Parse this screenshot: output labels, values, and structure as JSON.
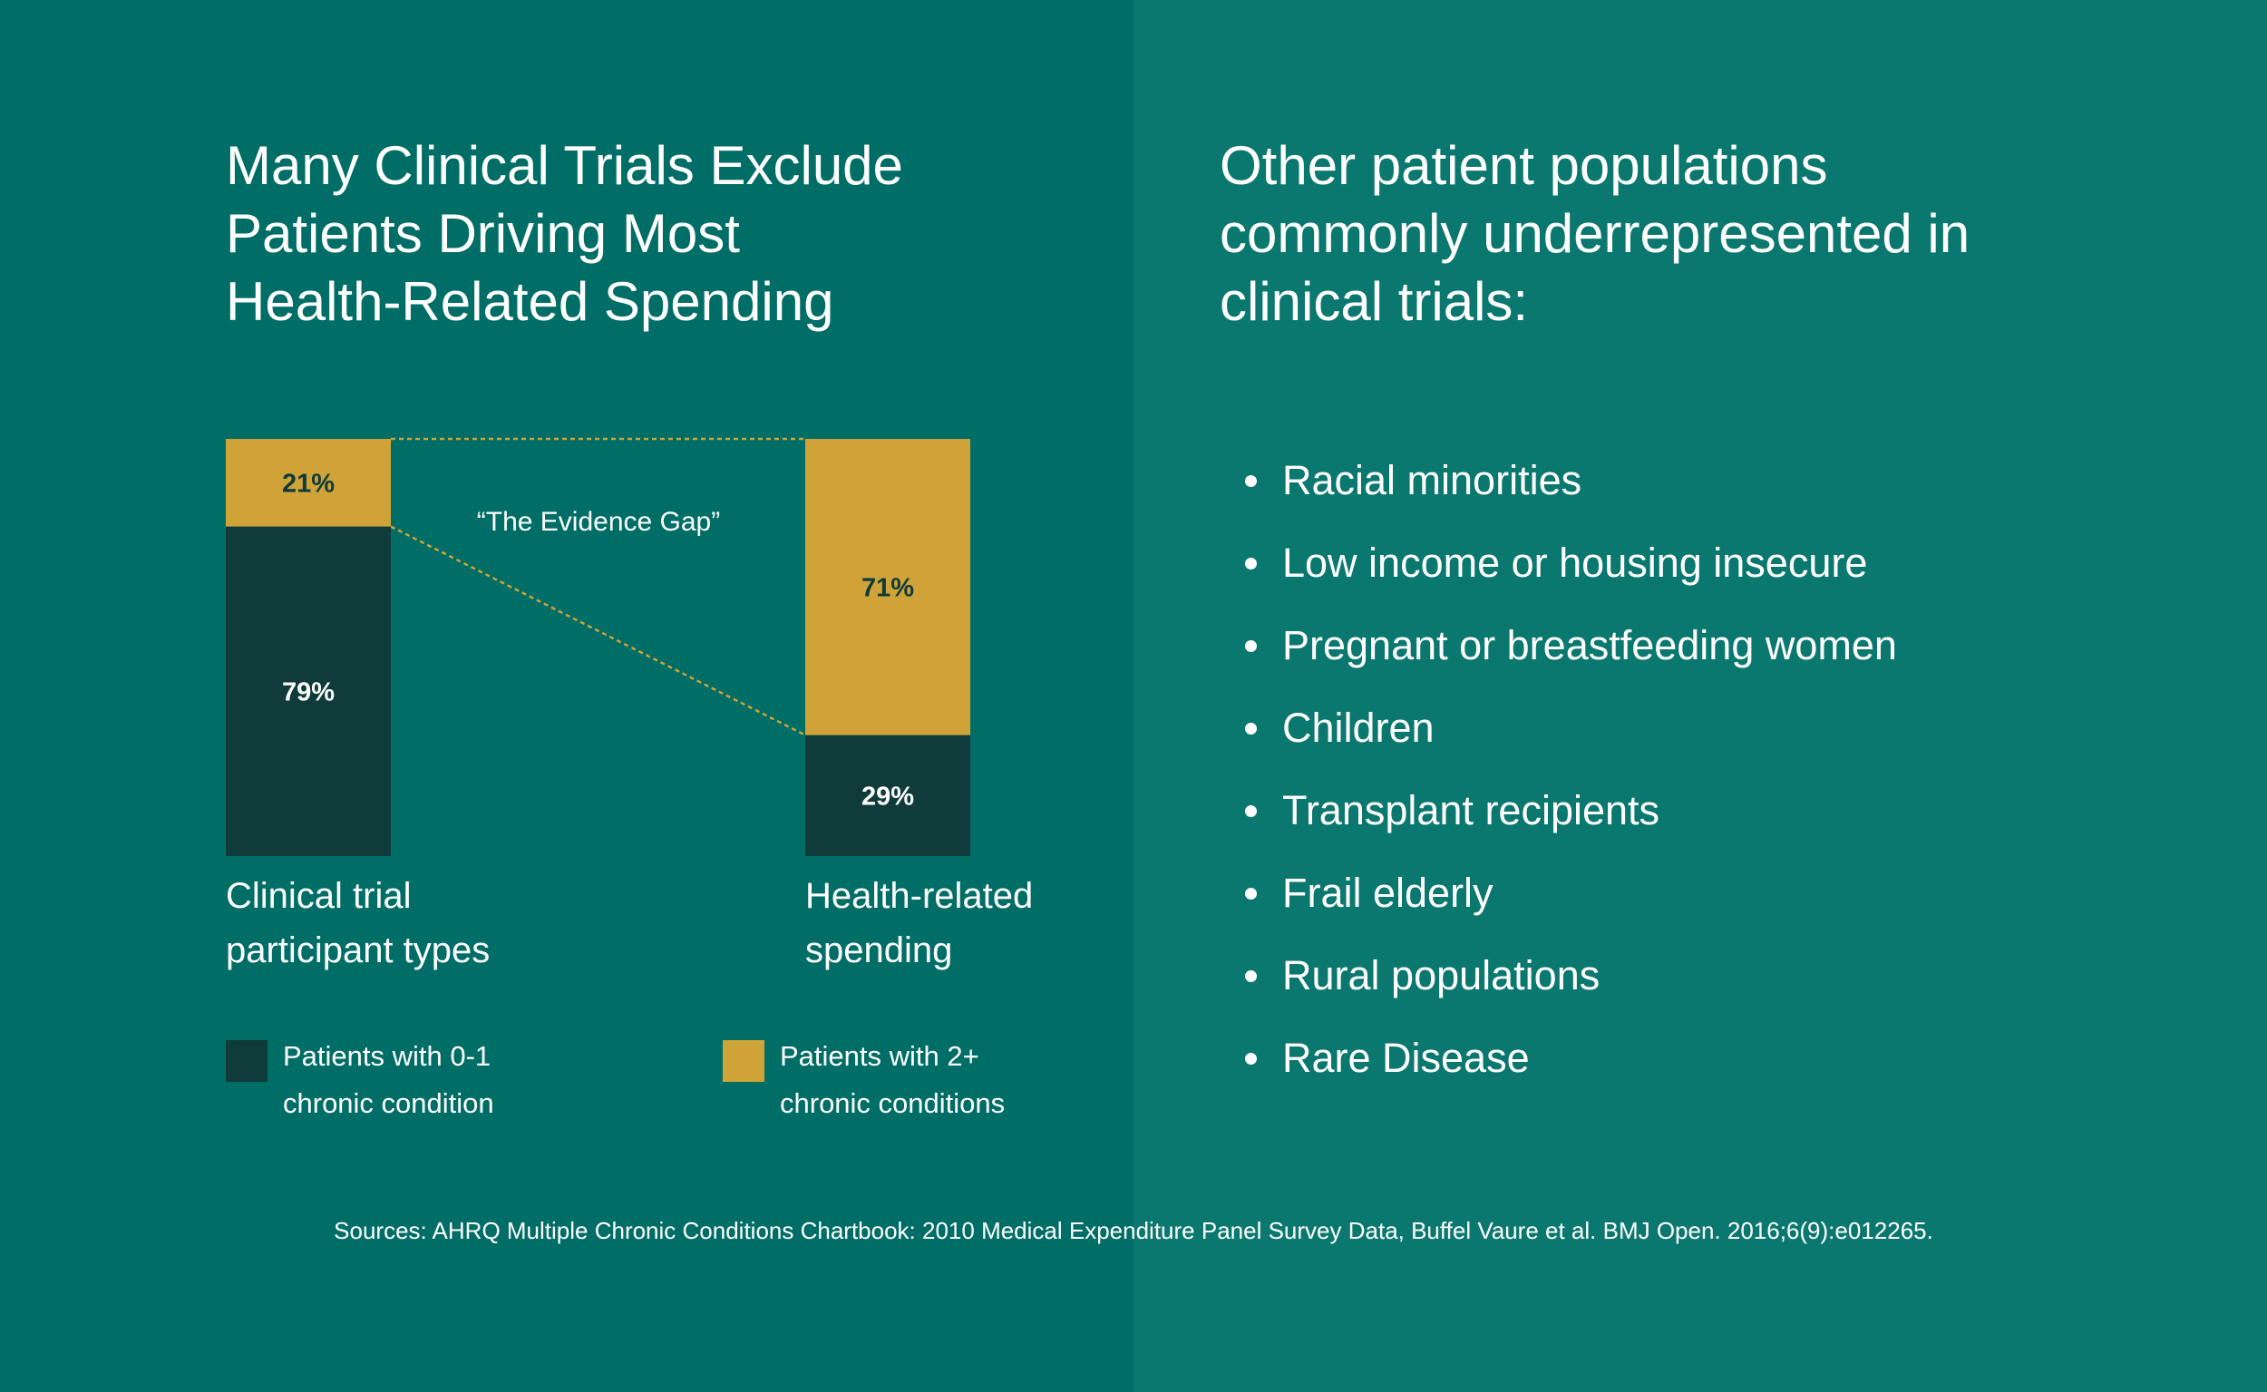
{
  "colors": {
    "background_left": "#006e66",
    "background_right": "#0b786f",
    "dark_segment": "#0f3b3a",
    "gold_segment": "#cfa337",
    "connector": "#cfa337",
    "text": "#ffffff"
  },
  "left": {
    "title": "Many Clinical Trials Exclude\nPatients Driving Most\nHealth-Related Spending"
  },
  "chart_data": {
    "type": "bar",
    "stacked": true,
    "categories": [
      "Clinical trial\nparticipant types",
      "Health-related\nspending"
    ],
    "series": [
      {
        "name": "Patients with 0-1\nchronic condition",
        "values": [
          79,
          29
        ],
        "labels": [
          "79%",
          "29%"
        ],
        "color": "#0f3b3a"
      },
      {
        "name": "Patients with 2+\nchronic conditions",
        "values": [
          21,
          71
        ],
        "labels": [
          "21%",
          "71%"
        ],
        "color": "#cfa337"
      }
    ],
    "ylim": [
      0,
      100
    ],
    "annotation": "“The Evidence Gap”",
    "legend_position": "bottom"
  },
  "right": {
    "title": "Other patient populations\ncommonly underrepresented in\nclinical trials:",
    "items": [
      "Racial minorities",
      "Low income or housing insecure",
      "Pregnant or breastfeeding women",
      "Children",
      "Transplant recipients",
      "Frail elderly",
      "Rural populations",
      "Rare Disease"
    ]
  },
  "sources": "Sources: AHRQ Multiple Chronic Conditions Chartbook: 2010 Medical Expenditure Panel Survey Data, Buffel Vaure et al. BMJ Open. 2016;6(9):e012265."
}
